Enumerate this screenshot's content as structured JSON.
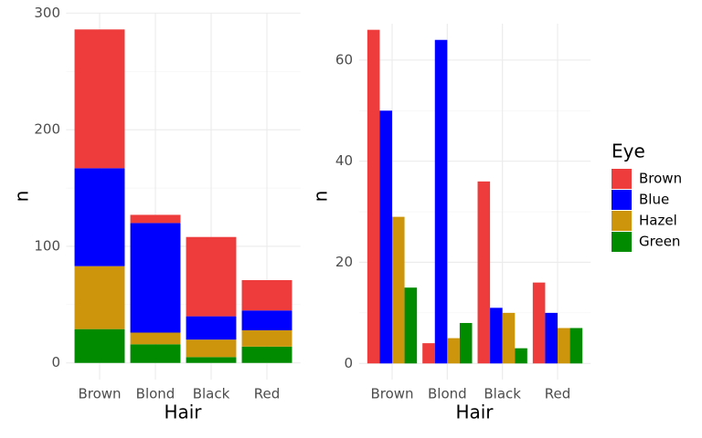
{
  "chart_data": [
    {
      "type": "bar",
      "stacked": true,
      "x_label": "Hair",
      "y_label": "n",
      "categories": [
        "Brown",
        "Blond",
        "Black",
        "Red"
      ],
      "series": [
        {
          "name": "Brown",
          "color": "#EE3B3B",
          "values": [
            119,
            7,
            68,
            26
          ]
        },
        {
          "name": "Blue",
          "color": "#0000FF",
          "values": [
            84,
            94,
            20,
            17
          ]
        },
        {
          "name": "Hazel",
          "color": "#CD950C",
          "values": [
            54,
            10,
            15,
            14
          ]
        },
        {
          "name": "Green",
          "color": "#008B00",
          "values": [
            29,
            16,
            5,
            14
          ]
        }
      ],
      "ylim": [
        -14.3,
        300.3
      ],
      "yticks": [
        0,
        100,
        200,
        300
      ],
      "grid": true
    },
    {
      "type": "bar",
      "stacked": false,
      "x_label": "Hair",
      "y_label": "n",
      "legend_title": "Eye",
      "legend": "right",
      "categories": [
        "Brown",
        "Blond",
        "Black",
        "Red"
      ],
      "series": [
        {
          "name": "Brown",
          "color": "#EE3B3B",
          "values": [
            66,
            4,
            36,
            16
          ]
        },
        {
          "name": "Blue",
          "color": "#0000FF",
          "values": [
            50,
            64,
            11,
            10
          ]
        },
        {
          "name": "Hazel",
          "color": "#CD950C",
          "values": [
            29,
            5,
            10,
            7
          ]
        },
        {
          "name": "Green",
          "color": "#008B00",
          "values": [
            15,
            8,
            3,
            7
          ]
        }
      ],
      "ylim": [
        -3.2,
        67.2
      ],
      "yticks": [
        0,
        20,
        40,
        60
      ],
      "grid": true
    }
  ]
}
